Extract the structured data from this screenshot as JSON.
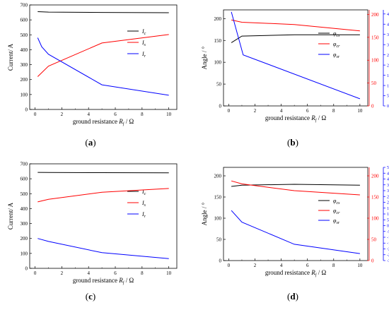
{
  "colors": {
    "black": "#000000",
    "red": "#ff0000",
    "blue": "#0000ff"
  },
  "chart_data": [
    {
      "type": "line",
      "panel_label": "(a)",
      "xlabel": "ground resistance",
      "xlabel_sym": "R",
      "xlabel_sub": "f",
      "xlabel_unit": "/ Ω",
      "ylabel": "Current/ A",
      "xlim": [
        -0.4,
        10.6
      ],
      "ylim": [
        0,
        700
      ],
      "x_ticks": [
        0,
        2,
        4,
        6,
        8,
        10
      ],
      "y_ticks": [
        0,
        100,
        200,
        300,
        400,
        500,
        600,
        700
      ],
      "x_tick_labels": [
        "0",
        "2",
        "4",
        "6",
        "8",
        "10"
      ],
      "y_tick_labels": [
        "0",
        "100",
        "200",
        "300",
        "400",
        "500",
        "600",
        "700"
      ],
      "legend_position": "right",
      "series": [
        {
          "name": "I",
          "sub": "c",
          "color": "#000000",
          "x": [
            0.2,
            1,
            5,
            10
          ],
          "y": [
            655,
            652,
            650,
            648
          ]
        },
        {
          "name": "I",
          "sub": "s",
          "color": "#ff0000",
          "x": [
            0.2,
            1,
            5,
            10
          ],
          "y": [
            220,
            290,
            445,
            502
          ]
        },
        {
          "name": "I",
          "sub": "r",
          "color": "#0000ff",
          "x": [
            0.2,
            0.5,
            1,
            5,
            10
          ],
          "y": [
            480,
            420,
            370,
            165,
            95
          ]
        }
      ]
    },
    {
      "type": "line",
      "panel_label": "(b)",
      "xlabel": "ground resistance",
      "xlabel_sym": "R",
      "xlabel_sub": "f",
      "xlabel_unit": "/ Ω",
      "ylabel": "Angle / °",
      "xlim": [
        -0.4,
        10.6
      ],
      "ylim": [
        0,
        220
      ],
      "x_ticks": [
        0,
        2,
        4,
        6,
        8,
        10
      ],
      "y_ticks": [
        0,
        50,
        100,
        150,
        200
      ],
      "x_tick_labels": [
        "0",
        "2",
        "4",
        "6",
        "8",
        "10"
      ],
      "y_tick_labels": [
        "0",
        "50",
        "100",
        "150",
        "200"
      ],
      "y2lim": [
        0,
        210
      ],
      "y2_ticks": [
        0,
        50,
        100,
        150,
        200
      ],
      "y2_tick_labels": [
        "0",
        "50",
        "100",
        "150",
        "200"
      ],
      "y3lim": [
        0,
        47
      ],
      "y3_ticks": [
        0,
        5,
        10,
        15,
        20,
        25,
        30,
        35,
        40,
        45
      ],
      "y3_tick_labels": [
        "0",
        "5",
        "10",
        "15",
        "20",
        "25",
        "30",
        "35",
        "40",
        "45"
      ],
      "legend_position": "right",
      "series": [
        {
          "name": "φ",
          "sub": "cs",
          "color": "#000000",
          "axis": "left",
          "x": [
            0.2,
            1,
            5,
            10
          ],
          "y": [
            145,
            160,
            163,
            163
          ]
        },
        {
          "name": "φ",
          "sub": "cr",
          "color": "#ff0000",
          "axis": "right",
          "x": [
            0.2,
            1,
            5,
            10
          ],
          "y": [
            188,
            183,
            178,
            164
          ]
        },
        {
          "name": "φ",
          "sub": "sr",
          "color": "#0000ff",
          "axis": "outer-right",
          "x": [
            0.2,
            1.1,
            10
          ],
          "y": [
            46,
            25,
            3.5
          ]
        }
      ]
    },
    {
      "type": "line",
      "panel_label": "(c)",
      "xlabel": "ground resistance",
      "xlabel_sym": "R",
      "xlabel_sub": "f",
      "xlabel_unit": "/ Ω",
      "ylabel": "Current/ A",
      "xlim": [
        -0.4,
        10.6
      ],
      "ylim": [
        0,
        700
      ],
      "x_ticks": [
        0,
        2,
        4,
        6,
        8,
        10
      ],
      "y_ticks": [
        0,
        100,
        200,
        300,
        400,
        500,
        600,
        700
      ],
      "x_tick_labels": [
        "0",
        "2",
        "4",
        "6",
        "8",
        "10"
      ],
      "y_tick_labels": [
        "0",
        "100",
        "200",
        "300",
        "400",
        "500",
        "600",
        "700"
      ],
      "legend_position": "right",
      "series": [
        {
          "name": "I",
          "sub": "c",
          "color": "#000000",
          "x": [
            0.2,
            1,
            5,
            10
          ],
          "y": [
            643,
            642,
            641,
            640
          ]
        },
        {
          "name": "I",
          "sub": "s",
          "color": "#ff0000",
          "x": [
            0.2,
            1,
            5,
            10
          ],
          "y": [
            445,
            462,
            510,
            535
          ]
        },
        {
          "name": "I",
          "sub": "r",
          "color": "#0000ff",
          "x": [
            0.2,
            1,
            5,
            10
          ],
          "y": [
            200,
            180,
            105,
            65
          ]
        }
      ]
    },
    {
      "type": "line",
      "panel_label": "(d)",
      "xlabel": "ground resistance",
      "xlabel_sym": "R",
      "xlabel_sub": "f",
      "xlabel_unit": "/ Ω",
      "ylabel": "Angle / °",
      "xlim": [
        -0.4,
        10.6
      ],
      "ylim": [
        0,
        220
      ],
      "x_ticks": [
        0,
        2,
        4,
        6,
        8,
        10
      ],
      "y_ticks": [
        0,
        50,
        100,
        150,
        200
      ],
      "x_tick_labels": [
        "0",
        "2",
        "4",
        "6",
        "8",
        "10"
      ],
      "y_tick_labels": [
        "0",
        "50",
        "100",
        "150",
        "200"
      ],
      "y2lim": [
        0,
        220
      ],
      "y2_ticks": [
        0,
        50,
        100,
        150,
        200
      ],
      "y2_tick_labels": [
        "0",
        "50",
        "100",
        "150",
        "200"
      ],
      "y3lim": [
        -30,
        50
      ],
      "y3_ticks": [
        -30,
        -25,
        -20,
        -15,
        -10,
        -5,
        0,
        5,
        10,
        15,
        20,
        25,
        30,
        35,
        40,
        45,
        50
      ],
      "y3_tick_labels": [
        "-30",
        "-25",
        "-20",
        "-15",
        "-10",
        "-5",
        "0",
        "5",
        "10",
        "15",
        "20",
        "25",
        "30",
        "35",
        "40",
        "45",
        "50"
      ],
      "legend_position": "right",
      "series": [
        {
          "name": "φ",
          "sub": "cs",
          "color": "#000000",
          "axis": "left",
          "x": [
            0.2,
            1,
            5,
            10
          ],
          "y": [
            175,
            178,
            180,
            178
          ]
        },
        {
          "name": "φ",
          "sub": "cr",
          "color": "#ff0000",
          "axis": "right",
          "x": [
            0.2,
            1,
            5,
            10
          ],
          "y": [
            188,
            181,
            165,
            155
          ]
        },
        {
          "name": "φ",
          "sub": "sr",
          "color": "#0000ff",
          "axis": "outer-right",
          "x": [
            0.2,
            1,
            5,
            10
          ],
          "y": [
            13,
            3,
            -16,
            -24
          ]
        }
      ]
    }
  ]
}
